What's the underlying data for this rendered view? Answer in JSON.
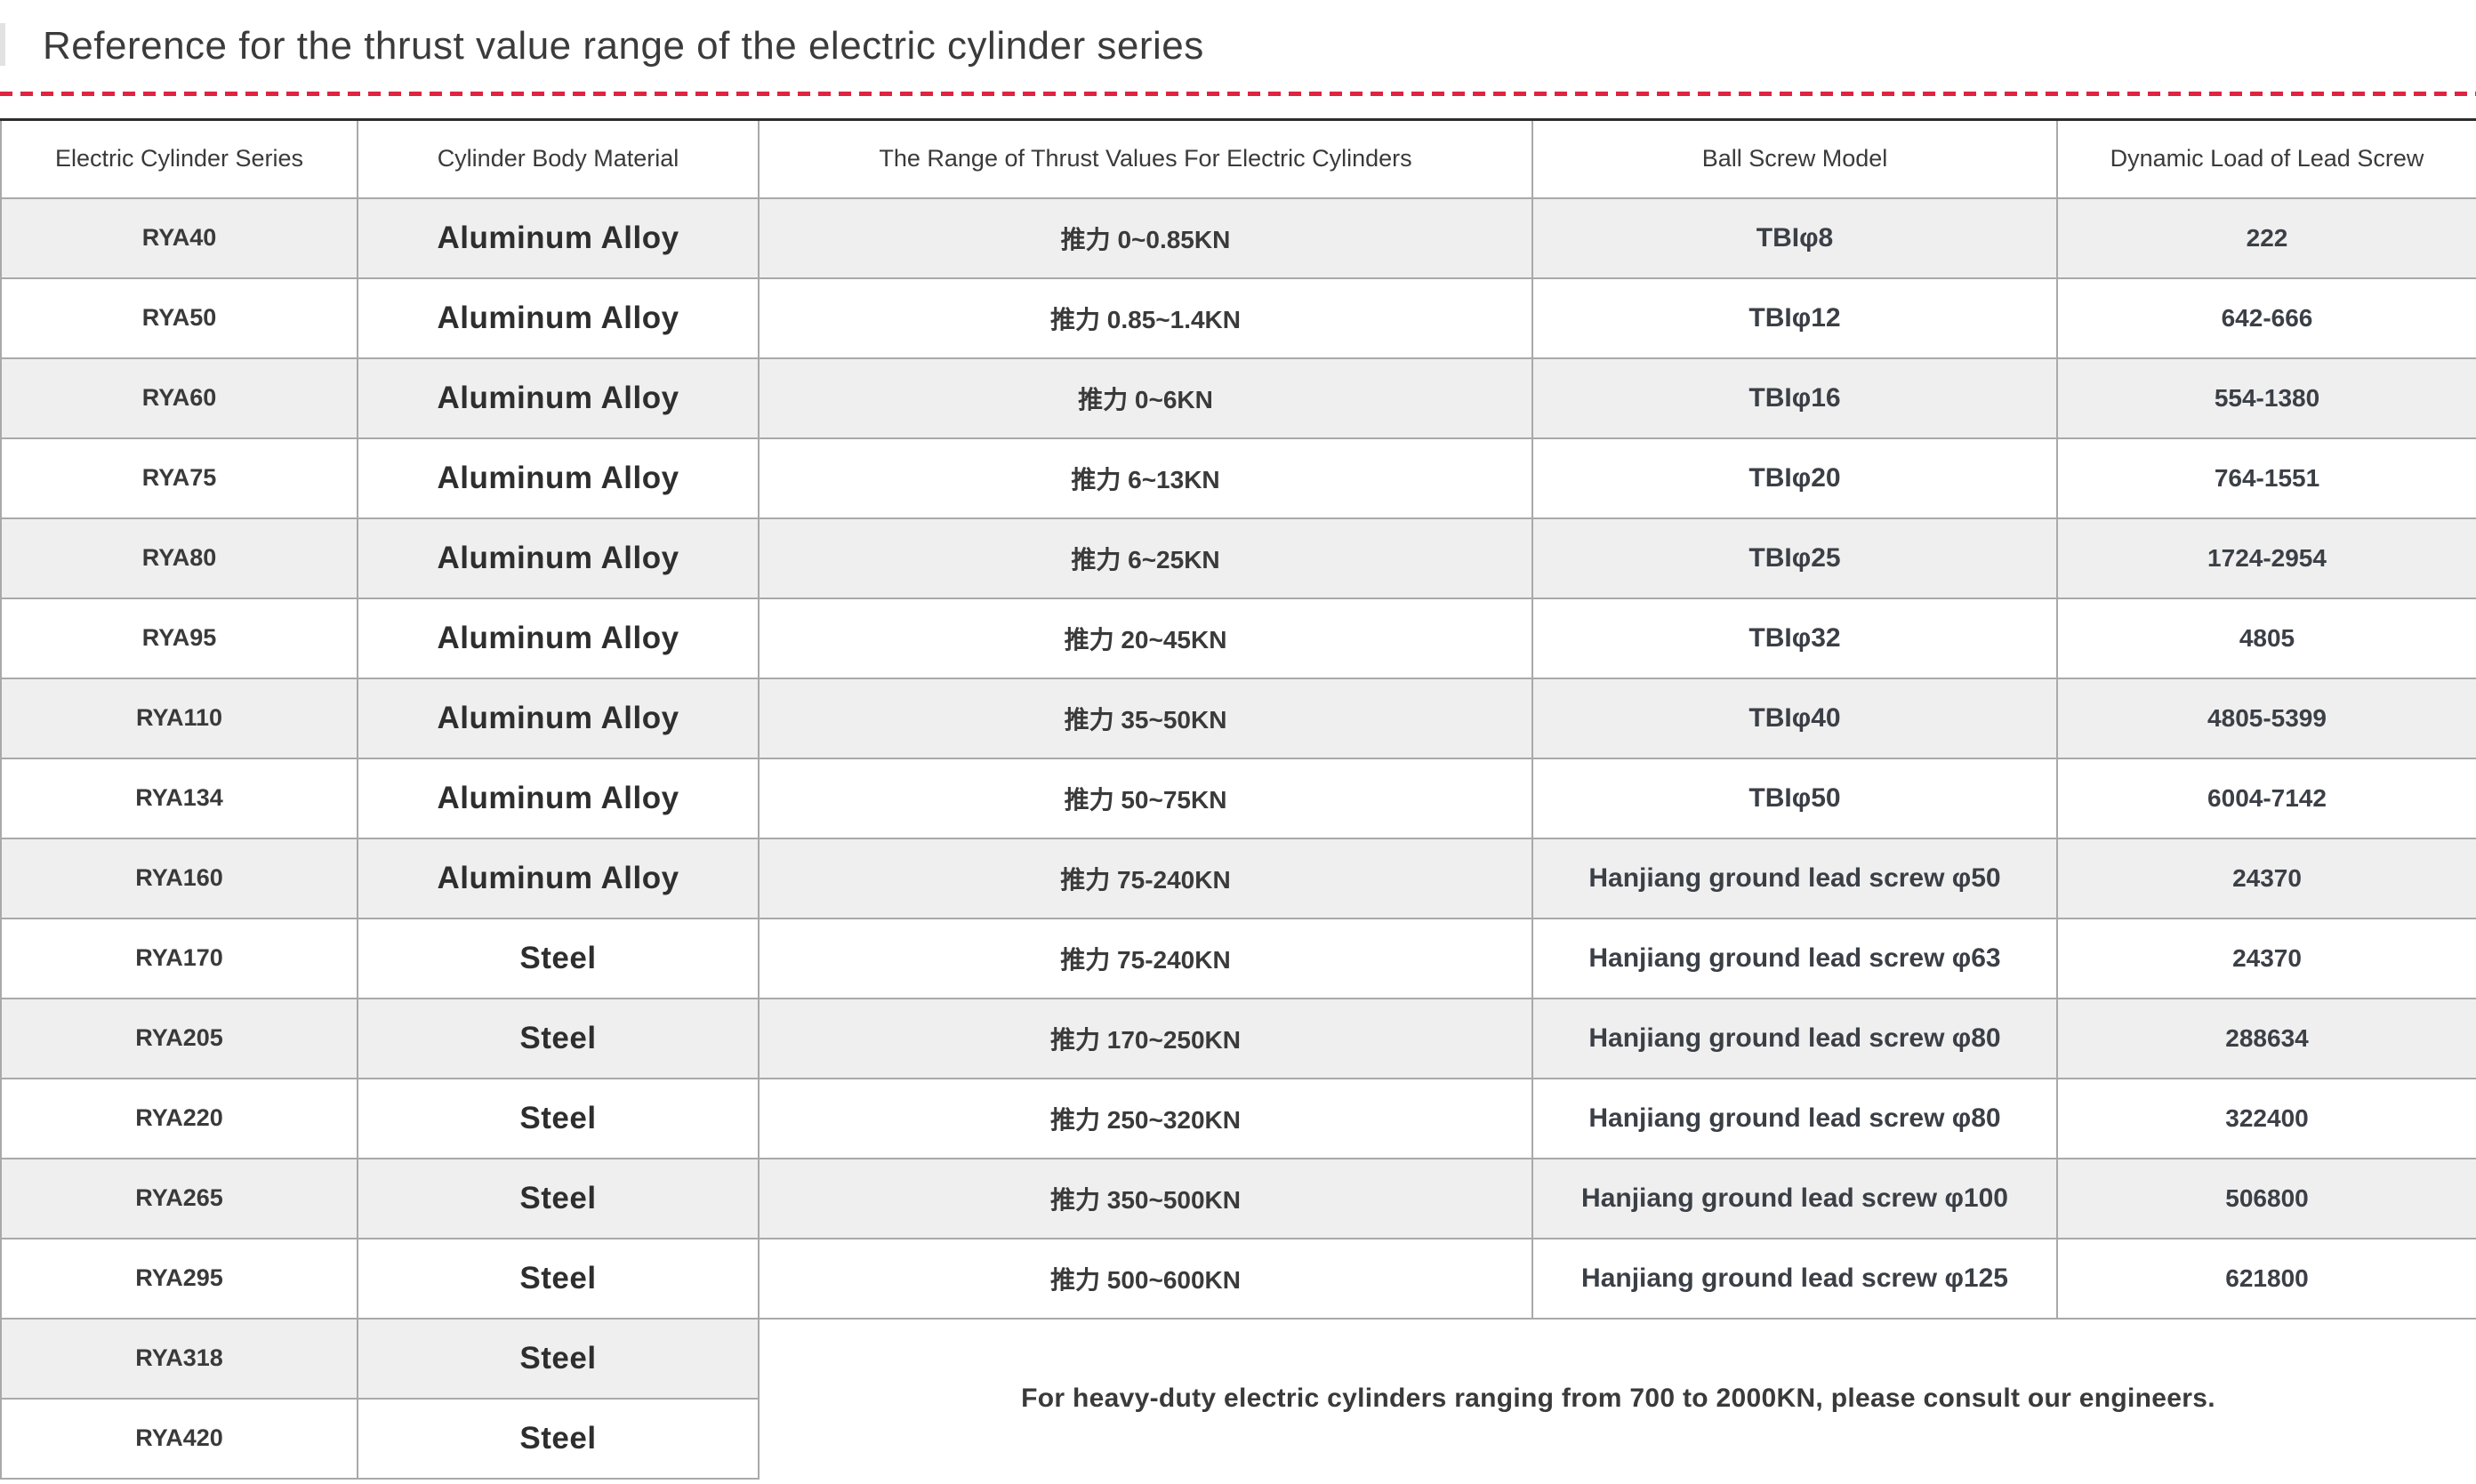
{
  "page": {
    "title": "Reference for the thrust value range of the electric cylinder series"
  },
  "colors": {
    "accent_red": "#e02340",
    "stripe_gray": "#efefef",
    "border_gray": "#a9a9a9",
    "text_dark": "#3a3a3a"
  },
  "table": {
    "columns": [
      "Electric Cylinder Series",
      "Cylinder Body Material",
      "The Range of Thrust Values For Electric Cylinders",
      "Ball Screw Model",
      "Dynamic Load of Lead Screw"
    ],
    "rows": [
      {
        "series": "RYA40",
        "material": "Aluminum Alloy",
        "thrust": "推力 0~0.85KN",
        "screw": "TBIφ8",
        "load": "222"
      },
      {
        "series": "RYA50",
        "material": "Aluminum Alloy",
        "thrust": "推力 0.85~1.4KN",
        "screw": "TBIφ12",
        "load": "642-666"
      },
      {
        "series": "RYA60",
        "material": "Aluminum Alloy",
        "thrust": "推力 0~6KN",
        "screw": "TBIφ16",
        "load": "554-1380"
      },
      {
        "series": "RYA75",
        "material": "Aluminum Alloy",
        "thrust": "推力 6~13KN",
        "screw": "TBIφ20",
        "load": "764-1551"
      },
      {
        "series": "RYA80",
        "material": "Aluminum Alloy",
        "thrust": "推力 6~25KN",
        "screw": "TBIφ25",
        "load": "1724-2954"
      },
      {
        "series": "RYA95",
        "material": "Aluminum Alloy",
        "thrust": "推力 20~45KN",
        "screw": "TBIφ32",
        "load": "4805"
      },
      {
        "series": "RYA110",
        "material": "Aluminum Alloy",
        "thrust": "推力 35~50KN",
        "screw": "TBIφ40",
        "load": "4805-5399"
      },
      {
        "series": "RYA134",
        "material": "Aluminum Alloy",
        "thrust": "推力 50~75KN",
        "screw": "TBIφ50",
        "load": "6004-7142"
      },
      {
        "series": "RYA160",
        "material": "Aluminum Alloy",
        "thrust": "推力 75-240KN",
        "screw": "Hanjiang ground lead screw φ50",
        "load": "24370"
      },
      {
        "series": "RYA170",
        "material": "Steel",
        "thrust": "推力 75-240KN",
        "screw": "Hanjiang ground lead screw φ63",
        "load": "24370"
      },
      {
        "series": "RYA205",
        "material": "Steel",
        "thrust": "推力 170~250KN",
        "screw": "Hanjiang ground lead screw φ80",
        "load": "288634"
      },
      {
        "series": "RYA220",
        "material": "Steel",
        "thrust": "推力 250~320KN",
        "screw": "Hanjiang ground lead screw φ80",
        "load": "322400"
      },
      {
        "series": "RYA265",
        "material": "Steel",
        "thrust": "推力 350~500KN",
        "screw": "Hanjiang ground lead screw φ100",
        "load": "506800"
      },
      {
        "series": "RYA295",
        "material": "Steel",
        "thrust": "推力 500~600KN",
        "screw": "Hanjiang ground lead screw φ125",
        "load": "621800"
      },
      {
        "series": "RYA318",
        "material": "Steel"
      },
      {
        "series": "RYA420",
        "material": "Steel"
      }
    ],
    "note": "For heavy-duty electric cylinders ranging from 700 to 2000KN, please consult our engineers."
  }
}
